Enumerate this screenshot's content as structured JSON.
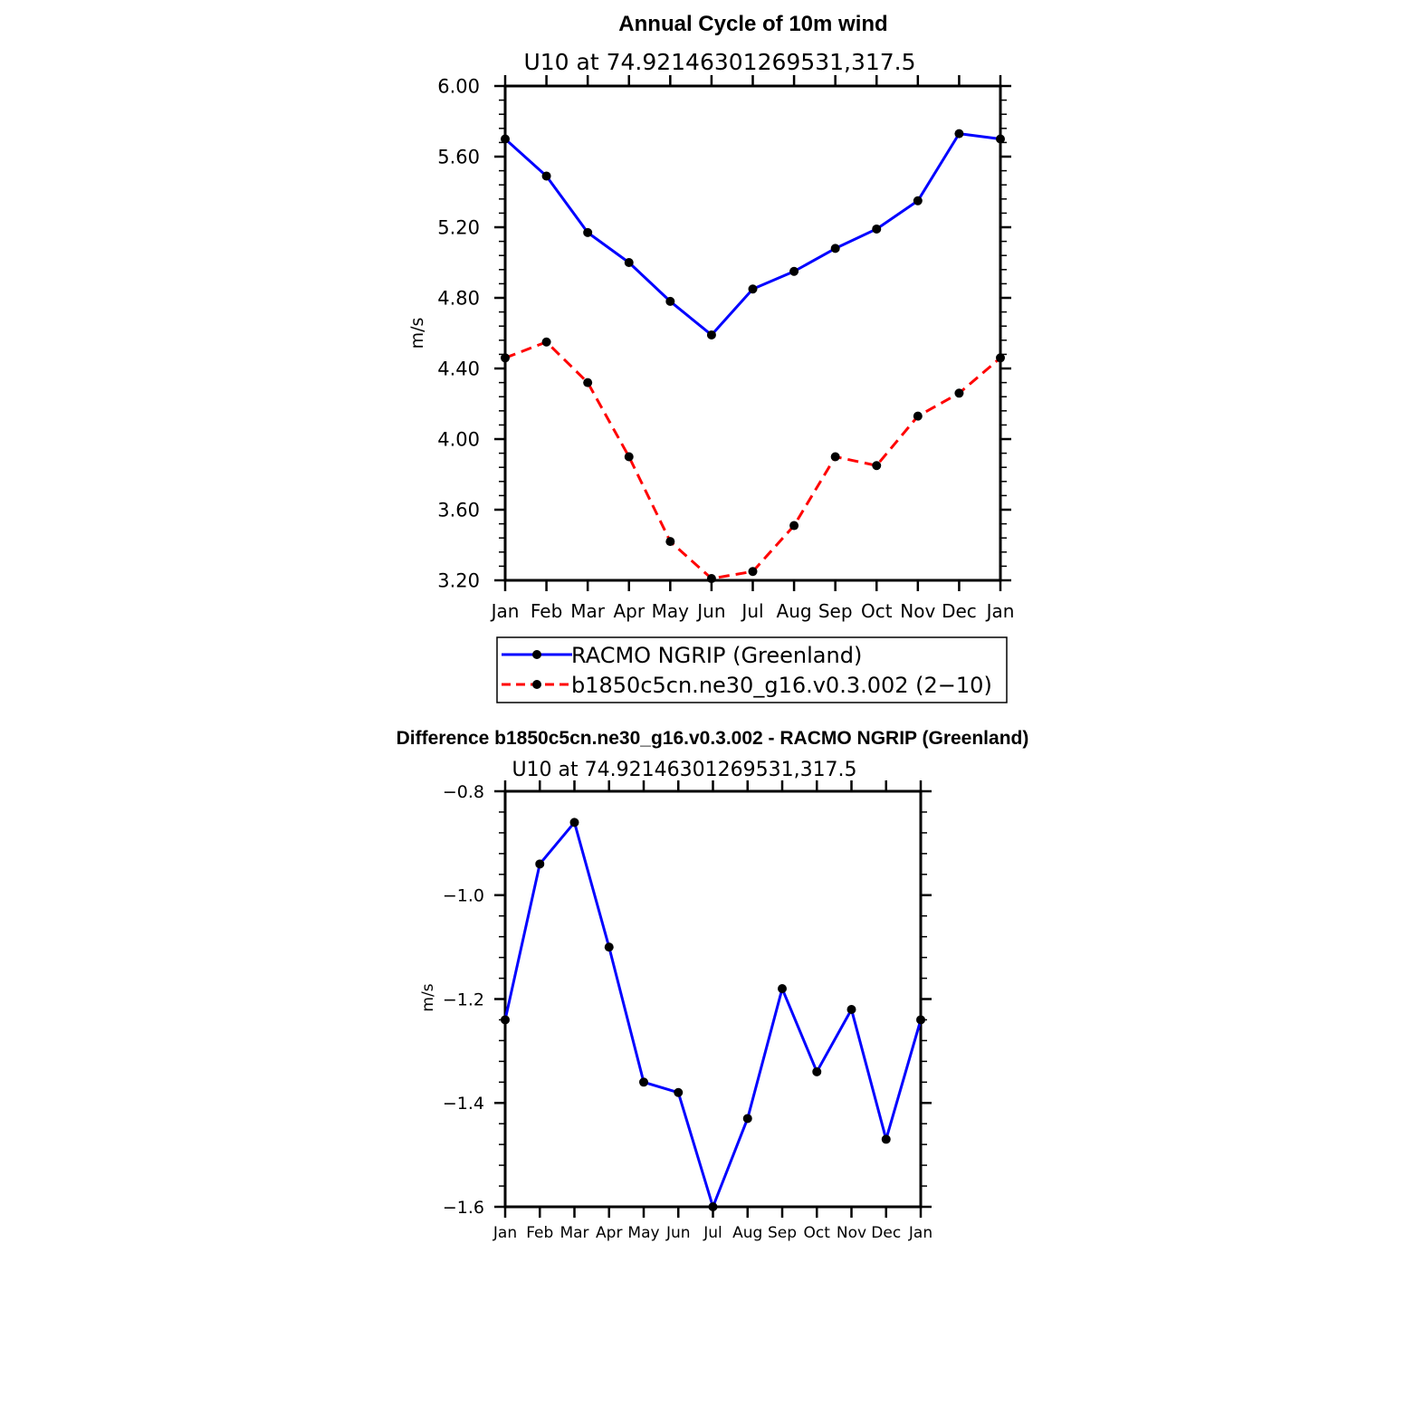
{
  "chart_data": [
    {
      "type": "line",
      "title": "Annual Cycle of 10m wind",
      "subtitle": "U10 at 74.92146301269531,317.5",
      "xlabel": "",
      "ylabel": "m/s",
      "categories": [
        "Jan",
        "Feb",
        "Mar",
        "Apr",
        "May",
        "Jun",
        "Jul",
        "Aug",
        "Sep",
        "Oct",
        "Nov",
        "Dec",
        "Jan"
      ],
      "ylim": [
        3.2,
        6.0
      ],
      "yticks": [
        "3.20",
        "3.60",
        "4.00",
        "4.40",
        "4.80",
        "5.20",
        "5.60",
        "6.00"
      ],
      "series": [
        {
          "name": "RACMO NGRIP (Greenland)",
          "color": "#0000ff",
          "style": "solid",
          "values": [
            5.7,
            5.49,
            5.17,
            5.0,
            4.78,
            4.59,
            4.85,
            4.95,
            5.08,
            5.19,
            5.35,
            5.73,
            5.7
          ]
        },
        {
          "name": "b1850c5cn.ne30_g16.v0.3.002 (2−10)",
          "color": "#ff0000",
          "style": "dashed",
          "values": [
            4.46,
            4.55,
            4.32,
            3.9,
            3.42,
            3.21,
            3.25,
            3.51,
            3.9,
            3.85,
            4.13,
            4.26,
            4.46
          ]
        }
      ],
      "legend": "bottom"
    },
    {
      "type": "line",
      "title": "Difference b1850c5cn.ne30_g16.v0.3.002 - RACMO NGRIP (Greenland)",
      "subtitle": "U10 at 74.92146301269531,317.5",
      "xlabel": "",
      "ylabel": "m/s",
      "categories": [
        "Jan",
        "Feb",
        "Mar",
        "Apr",
        "May",
        "Jun",
        "Jul",
        "Aug",
        "Sep",
        "Oct",
        "Nov",
        "Dec",
        "Jan"
      ],
      "ylim": [
        -1.6,
        -0.8
      ],
      "yticks": [
        "−1.6",
        "−1.4",
        "−1.2",
        "−1.0",
        "−0.8"
      ],
      "series": [
        {
          "name": "Difference",
          "color": "#0000ff",
          "style": "solid",
          "values": [
            -1.24,
            -0.94,
            -0.86,
            -1.1,
            -1.36,
            -1.38,
            -1.6,
            -1.43,
            -1.18,
            -1.34,
            -1.22,
            -1.47,
            -1.24
          ]
        }
      ]
    }
  ]
}
